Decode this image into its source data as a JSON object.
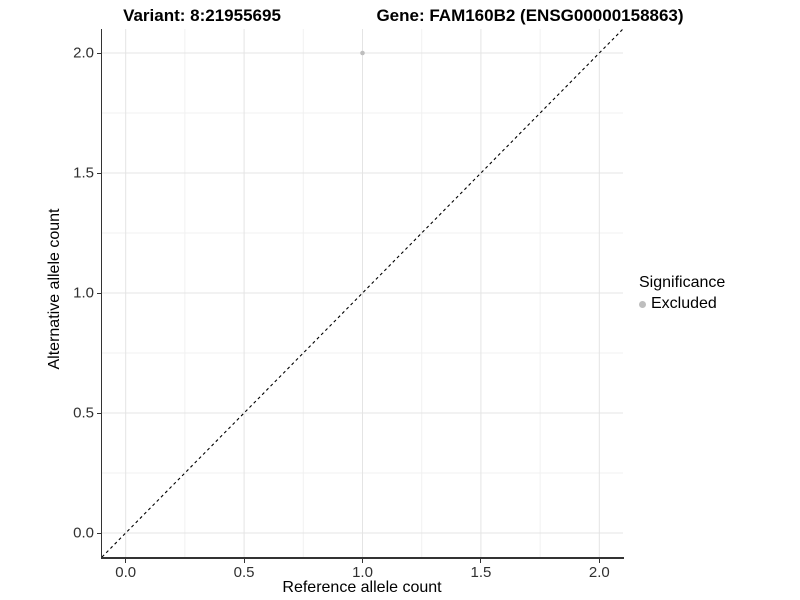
{
  "titles": {
    "variant": "Variant: 8:21955695",
    "gene": "Gene: FAM160B2 (ENSG00000158863)"
  },
  "chart_data": {
    "type": "scatter",
    "title_left": "Variant: 8:21955695",
    "title_right": "Gene: FAM160B2 (ENSG00000158863)",
    "xlabel": "Reference allele count",
    "ylabel": "Alternative allele count",
    "xlim": [
      -0.1,
      2.1
    ],
    "ylim": [
      -0.1,
      2.1
    ],
    "xticks": [
      0.0,
      0.5,
      1.0,
      1.5,
      2.0
    ],
    "yticks": [
      0.0,
      0.5,
      1.0,
      1.5,
      2.0
    ],
    "xtick_labels": [
      "0.0",
      "0.5",
      "1.0",
      "1.5",
      "2.0"
    ],
    "ytick_labels": [
      "0.0",
      "0.5",
      "1.0",
      "1.5",
      "2.0"
    ],
    "xticks_minor": [
      0.25,
      0.75,
      1.25,
      1.75
    ],
    "yticks_minor": [
      0.25,
      0.75,
      1.25,
      1.75
    ],
    "grid": true,
    "points": [
      {
        "x": 1.0,
        "y": 2.0,
        "series": "Excluded"
      }
    ],
    "reference_line": {
      "type": "identity",
      "style": "dashed",
      "from": [
        -0.1,
        -0.1
      ],
      "to": [
        2.1,
        2.1
      ]
    },
    "legend": {
      "title": "Significance",
      "position": "right",
      "entries": [
        {
          "label": "Excluded",
          "color": "#BEBEBE"
        }
      ]
    },
    "style": {
      "background": "#FFFFFF",
      "grid_major_color": "#E4E4E4",
      "grid_minor_color": "#F1F1F1",
      "axis_line_color": "#333333",
      "tick_label_color": "#303030",
      "ref_line_color": "#000000",
      "point_color": "#BEBEBE",
      "point_radius": 2.3,
      "legend_dot_radius": 3.5
    }
  }
}
